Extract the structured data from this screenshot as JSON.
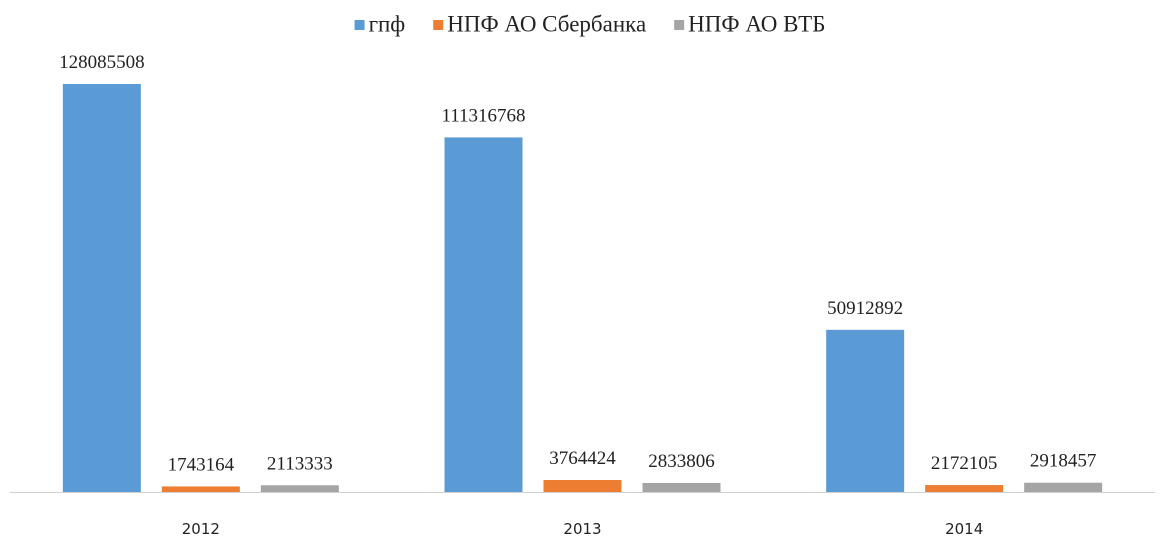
{
  "chart_data": {
    "type": "bar",
    "categories": [
      "2012",
      "2013",
      "2014"
    ],
    "series": [
      {
        "name": "гпф",
        "color": "#5b9bd5",
        "values": [
          128085508,
          111316768,
          50912892
        ]
      },
      {
        "name": "НПФ АО Сбербанка",
        "color": "#ed7d31",
        "values": [
          1743164,
          3764424,
          2172105
        ]
      },
      {
        "name": "НПФ АО ВТБ",
        "color": "#a5a5a5",
        "values": [
          2113333,
          2833806,
          2918457
        ]
      }
    ]
  }
}
